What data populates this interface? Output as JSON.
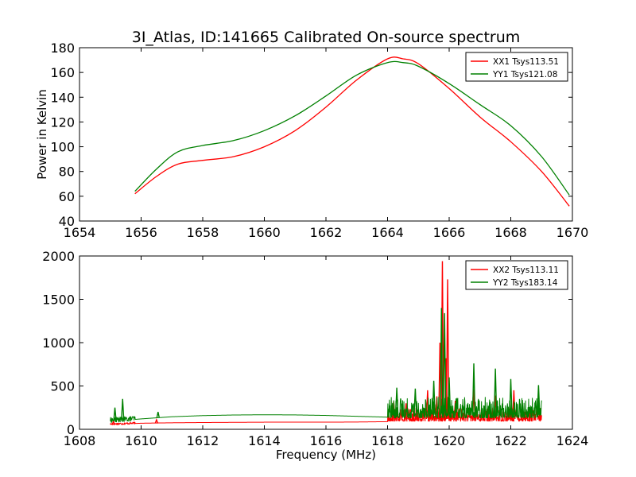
{
  "title": "3I_Atlas, ID:141665 Calibrated On-source spectrum",
  "chart_data": [
    {
      "type": "line",
      "ylabel": "Power in Kelvin",
      "xlabel": "",
      "xlim": [
        1654,
        1670
      ],
      "ylim": [
        40,
        180
      ],
      "xticks": [
        1654,
        1656,
        1658,
        1660,
        1662,
        1664,
        1666,
        1668,
        1670
      ],
      "yticks": [
        40,
        60,
        80,
        100,
        120,
        140,
        160,
        180
      ],
      "legend_position": "top-right",
      "series": [
        {
          "name": "XX1 Tsys113.51",
          "color": "#ff0000",
          "x": [
            1655.8,
            1656.5,
            1657.2,
            1658.0,
            1659.0,
            1660.0,
            1661.0,
            1662.0,
            1663.0,
            1664.0,
            1664.5,
            1665.0,
            1666.0,
            1667.0,
            1668.0,
            1669.0,
            1669.9
          ],
          "y": [
            62,
            76,
            86,
            89,
            92,
            100,
            113,
            132,
            154,
            171,
            171,
            167,
            147,
            124,
            104,
            80,
            52
          ]
        },
        {
          "name": "YY1 Tsys121.08",
          "color": "#008000",
          "x": [
            1655.8,
            1656.5,
            1657.2,
            1658.0,
            1659.0,
            1660.0,
            1661.0,
            1662.0,
            1663.0,
            1664.0,
            1664.5,
            1665.0,
            1666.0,
            1667.0,
            1668.0,
            1669.0,
            1669.9
          ],
          "y": [
            64,
            82,
            96,
            101,
            105,
            113,
            125,
            141,
            158,
            168,
            168,
            165,
            151,
            134,
            117,
            92,
            61
          ]
        }
      ]
    },
    {
      "type": "line",
      "xlabel": "Frequency (MHz)",
      "ylabel": "",
      "xlim": [
        1608,
        1624
      ],
      "ylim": [
        0,
        2000
      ],
      "xticks": [
        1608,
        1610,
        1612,
        1614,
        1616,
        1618,
        1620,
        1622,
        1624
      ],
      "yticks": [
        0,
        500,
        1000,
        1500,
        2000
      ],
      "legend_position": "top-right",
      "series": [
        {
          "name": "XX2 Tsys113.11",
          "color": "#ff0000",
          "baseline": {
            "x": [
              1609.0,
              1609.5,
              1610.0,
              1611.0,
              1612.0,
              1613.0,
              1614.0,
              1615.0,
              1616.0,
              1617.0,
              1618.0
            ],
            "y": [
              55,
              62,
              70,
              75,
              78,
              80,
              82,
              82,
              82,
              84,
              88
            ]
          },
          "noise": {
            "range": [
              1618.0,
              1623.0
            ],
            "level": 170,
            "amplitude": 70
          },
          "peaks": {
            "x": [
              1609.1,
              1610.5,
              1618.2,
              1618.6,
              1619.3,
              1619.6,
              1619.7,
              1619.78,
              1619.9,
              1619.95,
              1620.2,
              1620.8,
              1621.5,
              1622.1
            ],
            "y": [
              90,
              110,
              320,
              300,
              450,
              380,
              1000,
              1940,
              820,
              1730,
              330,
              460,
              390,
              450
            ]
          }
        },
        {
          "name": "YY2 Tsys183.14",
          "color": "#008000",
          "baseline": {
            "x": [
              1609.0,
              1609.5,
              1610.0,
              1611.0,
              1612.0,
              1613.0,
              1614.0,
              1615.0,
              1616.0,
              1617.0,
              1618.0
            ],
            "y": [
              95,
              105,
              120,
              145,
              158,
              165,
              168,
              166,
              160,
              150,
              140
            ]
          },
          "noise": {
            "range": [
              1618.0,
              1623.0
            ],
            "level": 240,
            "amplitude": 110
          },
          "peaks": {
            "x": [
              1609.15,
              1609.4,
              1610.55,
              1618.3,
              1618.9,
              1619.5,
              1619.75,
              1619.85,
              1620.0,
              1620.8,
              1621.5,
              1622.0,
              1622.9
            ],
            "y": [
              250,
              350,
              200,
              480,
              470,
              560,
              1400,
              1340,
              600,
              760,
              700,
              580,
              510
            ]
          }
        }
      ]
    }
  ]
}
